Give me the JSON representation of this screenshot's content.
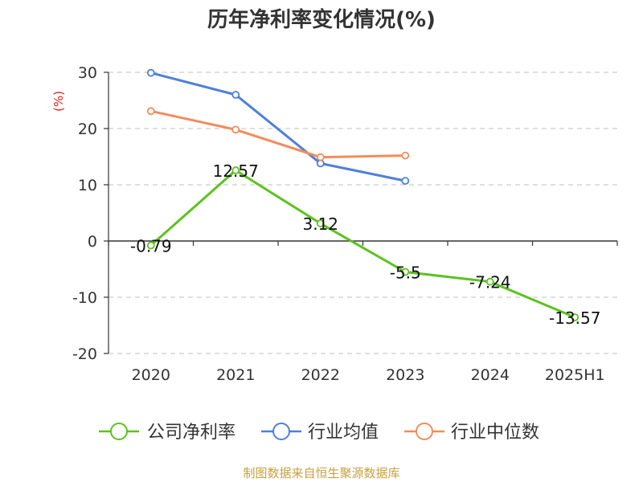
{
  "chart_data": {
    "type": "line",
    "title": "历年净利率变化情况(%)",
    "ylabel": "(%)",
    "xlabel": "",
    "categories": [
      "2020",
      "2021",
      "2022",
      "2023",
      "2024",
      "2025H1"
    ],
    "ylim": [
      -20,
      30
    ],
    "yticks": [
      -20,
      -10,
      0,
      10,
      20,
      30
    ],
    "grid": true,
    "legend_position": "bottom",
    "series": [
      {
        "name": "公司净利率",
        "color": "#5cc21e",
        "values": [
          -0.79,
          12.57,
          3.12,
          -5.5,
          -7.24,
          -13.57
        ],
        "labels": [
          "-0.79",
          "12.57",
          "3.12",
          "-5.5",
          "-7.24",
          "-13.57"
        ]
      },
      {
        "name": "行业均值",
        "color": "#4e7fdc",
        "values": [
          29.9,
          26.0,
          13.8,
          10.7,
          null,
          null
        ]
      },
      {
        "name": "行业中位数",
        "color": "#f48c5a",
        "values": [
          23.1,
          19.8,
          14.9,
          15.2,
          null,
          null
        ]
      }
    ],
    "source": "制图数据来自恒生聚源数据库"
  }
}
